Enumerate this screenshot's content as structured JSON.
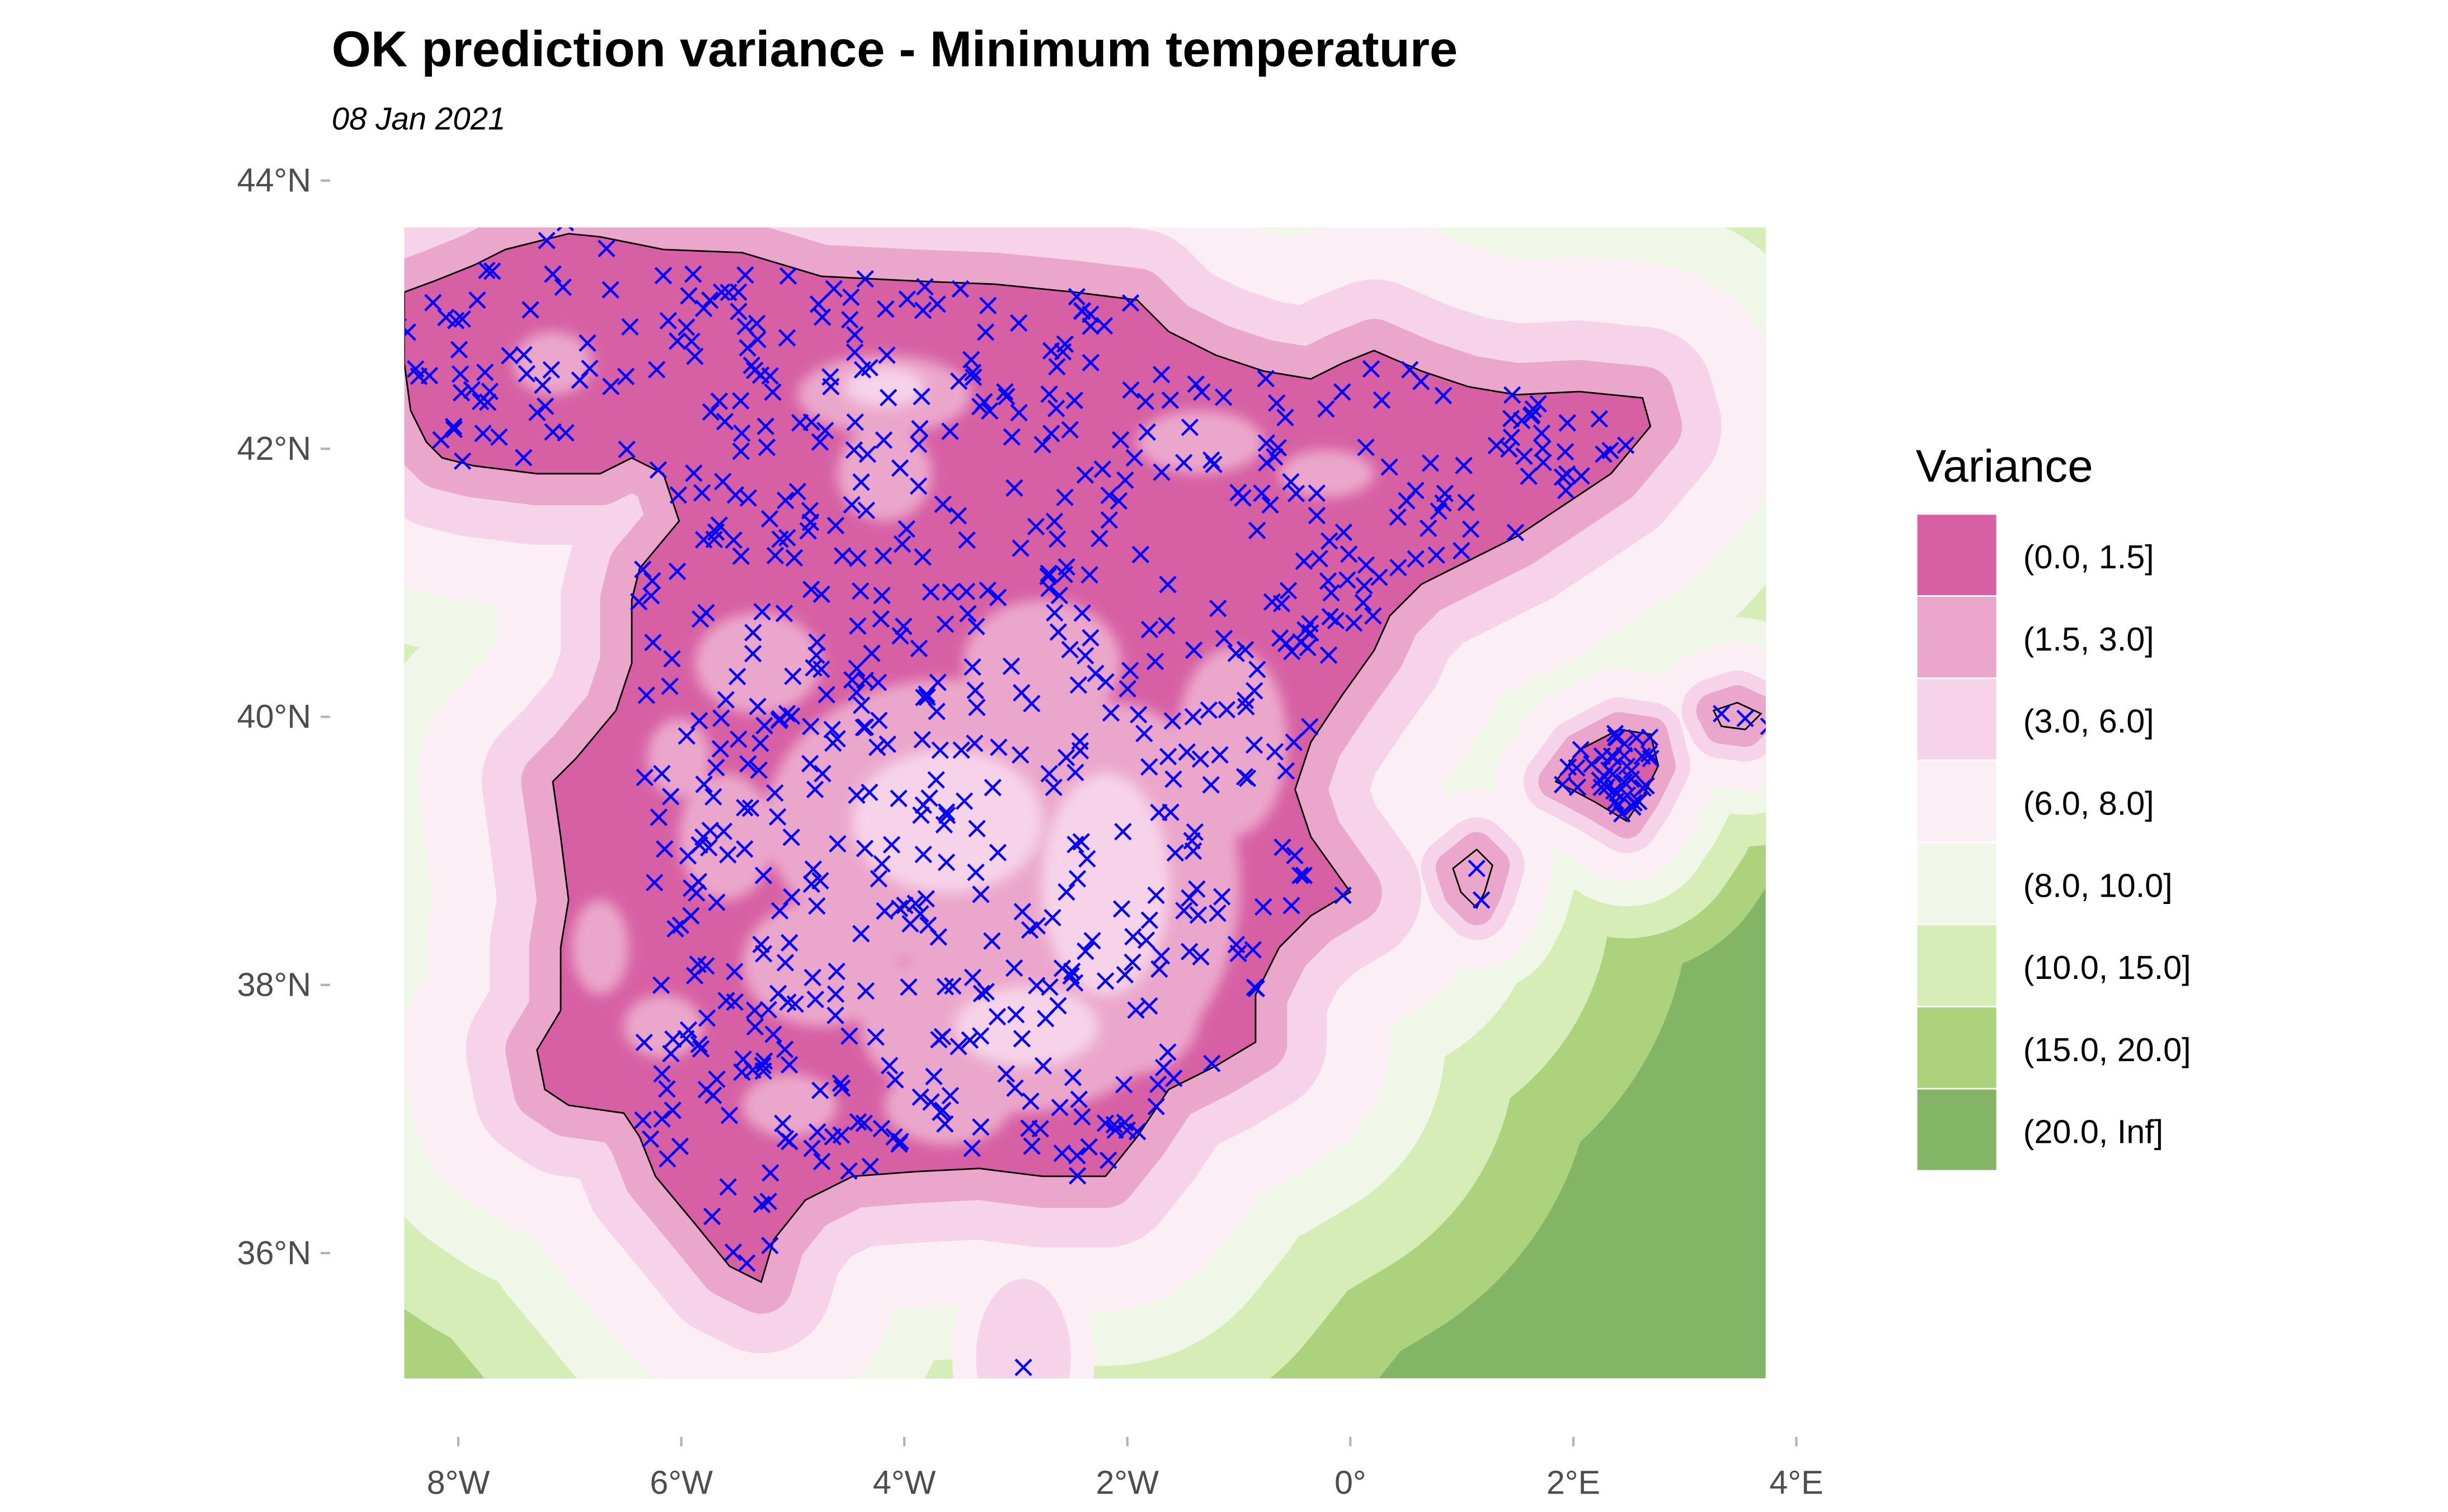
{
  "chart_data": {
    "type": "map",
    "title": "OK prediction variance - Minimum temperature",
    "subtitle": "08 Jan 2021",
    "x_ticks": [
      "8°W",
      "6°W",
      "4°W",
      "2°W",
      "0°",
      "2°E",
      "4°E"
    ],
    "x_tick_values": [
      -8,
      -6,
      -4,
      -2,
      0,
      2,
      4
    ],
    "y_ticks": [
      "44°N",
      "42°N",
      "40°N",
      "38°N",
      "36°N"
    ],
    "y_tick_values": [
      44,
      42,
      40,
      38,
      36
    ],
    "xlim": [
      -8.5,
      3.8
    ],
    "ylim": [
      35.0,
      43.6
    ],
    "legend": {
      "title": "Variance",
      "position": "right",
      "items": [
        {
          "label": "(0.0, 1.5]",
          "color": "#D660A3"
        },
        {
          "label": "(1.5, 3.0]",
          "color": "#EBA7CB"
        },
        {
          "label": "(3.0, 6.0]",
          "color": "#F6D3E8"
        },
        {
          "label": "(6.0, 8.0]",
          "color": "#FCEEF5"
        },
        {
          "label": "(8.0, 10.0]",
          "color": "#F1F7E8"
        },
        {
          "label": "(10.0, 15.0]",
          "color": "#D6EDB8"
        },
        {
          "label": "(15.0, 20.0]",
          "color": "#ADD27E"
        },
        {
          "label": "(20.0, Inf]",
          "color": "#84B466"
        }
      ]
    },
    "station_marker_color": "#0000FF",
    "outline_color": "#000000"
  }
}
